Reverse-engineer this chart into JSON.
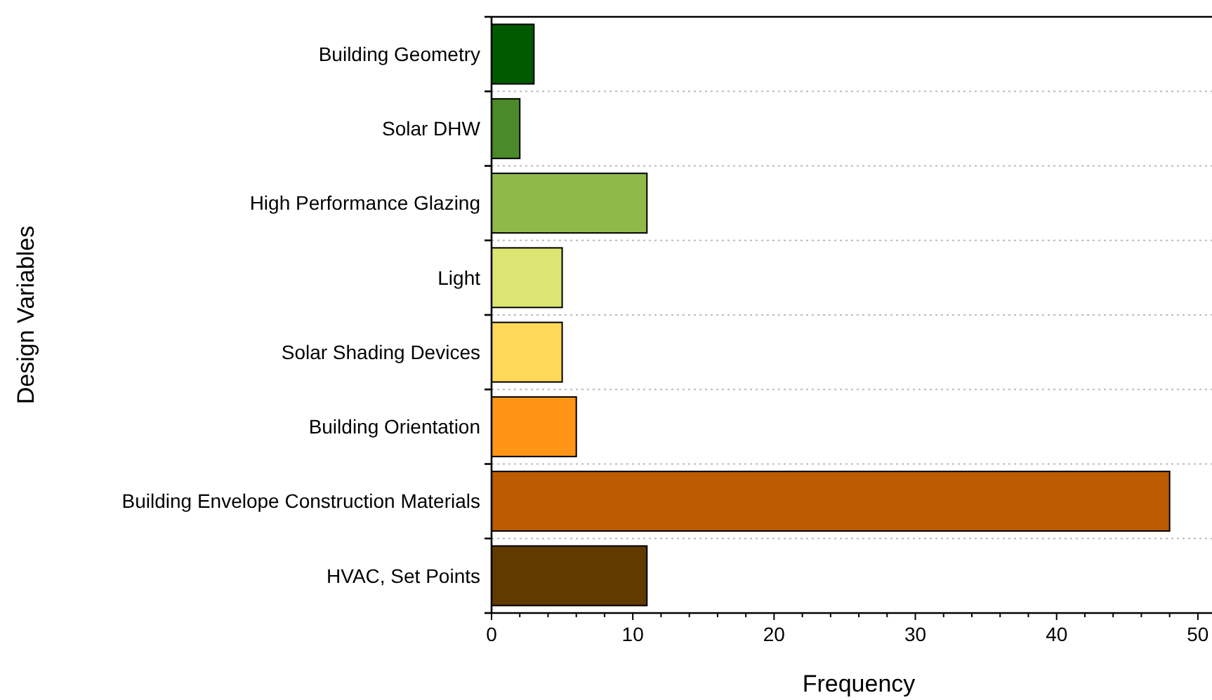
{
  "chart_data": {
    "type": "bar",
    "orientation": "horizontal",
    "xlabel": "Frequency",
    "ylabel": "Design Variables",
    "categories": [
      "Building Geometry",
      "Solar DHW",
      "High Performance Glazing",
      "Light",
      "Solar Shading Devices",
      "Building Orientation",
      "Building Envelope Construction Materials",
      "HVAC, Set Points"
    ],
    "values": [
      3,
      2,
      11,
      5,
      5,
      6,
      48,
      11
    ],
    "colors": [
      "#005a00",
      "#4a8a28",
      "#8fba4a",
      "#dbe672",
      "#ffd85a",
      "#ff9416",
      "#bb5c00",
      "#613a00"
    ],
    "xlim": [
      0,
      51
    ],
    "xticks": [
      0,
      {
        "value": 2,
        "label": null
      },
      {
        "value": 4,
        "label": null
      },
      {
        "value": 6,
        "label": null
      },
      {
        "value": 8,
        "label": null
      },
      10,
      {
        "value": 12,
        "label": null
      },
      {
        "value": 14,
        "label": null
      },
      {
        "value": 16,
        "label": null
      },
      {
        "value": 18,
        "label": null
      },
      20,
      {
        "value": 22,
        "label": null
      },
      {
        "value": 24,
        "label": null
      },
      {
        "value": 26,
        "label": null
      },
      {
        "value": 28,
        "label": null
      },
      30,
      {
        "value": 32,
        "label": null
      },
      {
        "value": 34,
        "label": null
      },
      {
        "value": 36,
        "label": null
      },
      {
        "value": 38,
        "label": null
      },
      40,
      {
        "value": 42,
        "label": null
      },
      {
        "value": 44,
        "label": null
      },
      {
        "value": 46,
        "label": null
      },
      {
        "value": 48,
        "label": null
      },
      50
    ],
    "grid": "y"
  }
}
